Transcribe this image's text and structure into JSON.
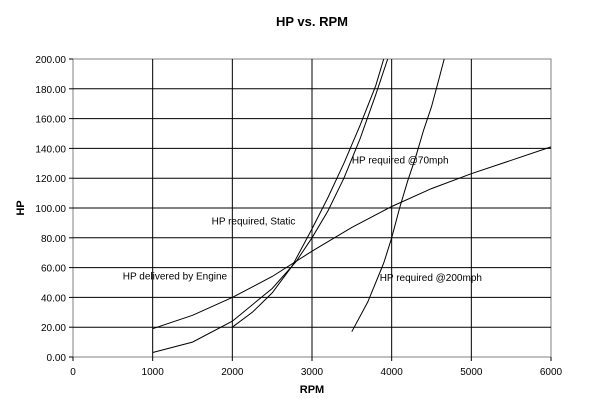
{
  "chart_data": {
    "type": "line",
    "title": "HP vs. RPM",
    "xlabel": "RPM",
    "ylabel": "HP",
    "xlim": [
      0,
      6000
    ],
    "ylim": [
      0,
      200
    ],
    "x_ticks": [
      0,
      1000,
      2000,
      3000,
      4000,
      5000,
      6000
    ],
    "x_tick_labels": [
      "0",
      "1000",
      "2000",
      "3000",
      "4000",
      "5000",
      "6000"
    ],
    "y_ticks": [
      0,
      20,
      40,
      60,
      80,
      100,
      120,
      140,
      160,
      180,
      200
    ],
    "y_tick_labels": [
      "0.00",
      "20.00",
      "40.00",
      "60.00",
      "80.00",
      "100.00",
      "120.00",
      "140.00",
      "160.00",
      "180.00",
      "200.00"
    ],
    "grid": true,
    "legend": "none",
    "series": [
      {
        "name": "HP delivered by Engine",
        "x": [
          1000,
          1500,
          2000,
          2500,
          3000,
          3500,
          4000,
          4500,
          5000,
          5500,
          6000
        ],
        "y": [
          19,
          28,
          40,
          54,
          71,
          87,
          101,
          113,
          123,
          132,
          141
        ]
      },
      {
        "name": "HP required, Static",
        "x": [
          1000,
          1500,
          2000,
          2500,
          2800,
          3000,
          3200,
          3400,
          3600,
          3800,
          3950
        ],
        "y": [
          3,
          10,
          24,
          46,
          64,
          80,
          98,
          120,
          146,
          176,
          200
        ]
      },
      {
        "name": "HP required @70mph",
        "x": [
          2000,
          2250,
          2500,
          2750,
          3000,
          3200,
          3400,
          3600,
          3800,
          3900
        ],
        "y": [
          20,
          30,
          43,
          61,
          86,
          107,
          130,
          155,
          182,
          200
        ]
      },
      {
        "name": "HP required @200mph",
        "x": [
          3500,
          3700,
          3900,
          4000,
          4100,
          4200,
          4300,
          4400,
          4500,
          4600,
          4660
        ],
        "y": [
          17,
          37,
          63,
          80,
          100,
          118,
          134,
          152,
          168,
          188,
          200
        ]
      }
    ],
    "annotations": [
      {
        "text": "HP delivered by Engine",
        "x": 625,
        "y": 52
      },
      {
        "text": "HP required, Static",
        "x": 1740,
        "y": 89
      },
      {
        "text": "HP required @70mph",
        "x": 3500,
        "y": 130
      },
      {
        "text": "HP required @200mph",
        "x": 3850,
        "y": 51
      }
    ],
    "colors": {
      "lines": "#000000",
      "grid": "#000000",
      "background": "#ffffff"
    }
  }
}
